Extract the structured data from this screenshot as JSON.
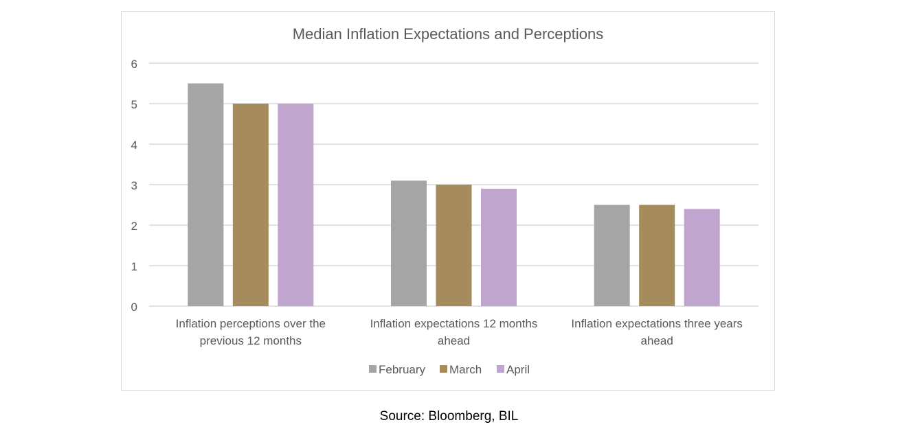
{
  "chart_data": {
    "type": "bar",
    "title": "Median Inflation Expectations and Perceptions",
    "categories": [
      [
        "Inflation perceptions over the",
        "previous 12 months"
      ],
      [
        "Inflation expectations 12 months",
        "ahead"
      ],
      [
        "Inflation expectations three years",
        "ahead"
      ]
    ],
    "series": [
      {
        "name": "February",
        "color": "#a5a5a5",
        "values": [
          5.5,
          3.1,
          2.5
        ]
      },
      {
        "name": "March",
        "color": "#a68c5c",
        "values": [
          5.0,
          3.0,
          2.5
        ]
      },
      {
        "name": "April",
        "color": "#c0a6cf",
        "values": [
          5.0,
          2.9,
          2.4
        ]
      }
    ],
    "ylim": [
      0,
      6
    ],
    "yticks": [
      0,
      1,
      2,
      3,
      4,
      5,
      6
    ],
    "grid": true,
    "legend_position": "bottom"
  },
  "source": "Source: Bloomberg, BIL"
}
